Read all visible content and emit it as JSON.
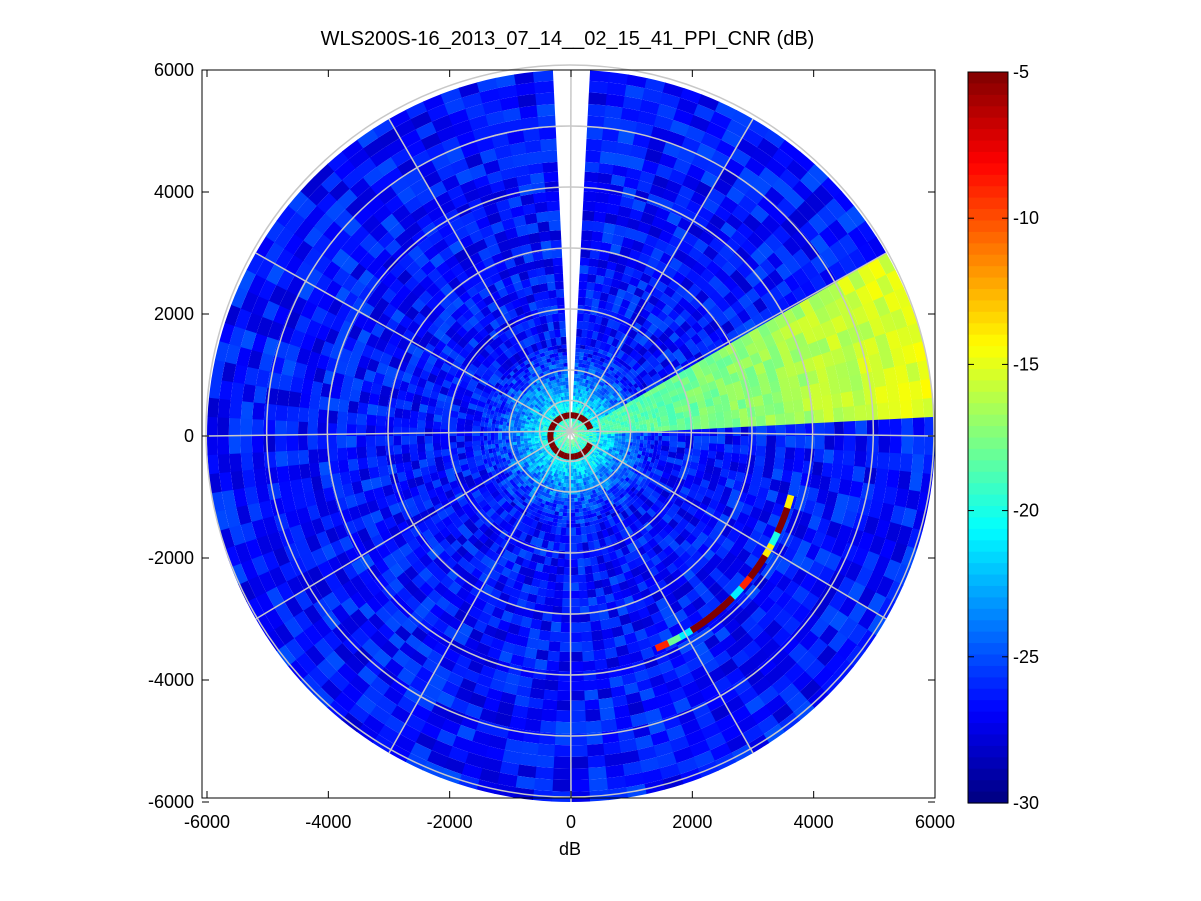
{
  "chart_data": {
    "type": "heatmap",
    "subtype": "polar-ppi",
    "title": "WLS200S-16_2013_07_14__02_15_41_PPI_CNR (dB)",
    "xlabel": "dB",
    "ylabel": "",
    "xlim": [
      -6000,
      6000
    ],
    "ylim": [
      -6000,
      6000
    ],
    "x_ticks": [
      -6000,
      -4000,
      -2000,
      0,
      2000,
      4000,
      6000
    ],
    "y_ticks": [
      -6000,
      -4000,
      -2000,
      0,
      2000,
      4000,
      6000
    ],
    "max_range": 6000,
    "range_rings": [
      500,
      1000,
      2000,
      3000,
      4000,
      5000,
      6000
    ],
    "spoke_angles_deg": [
      0,
      30,
      60,
      90,
      120,
      150,
      180,
      210,
      240,
      270,
      300,
      330
    ],
    "grid": true,
    "colormap": "jet",
    "colorbar": {
      "label": "",
      "range": [
        -30,
        -5
      ],
      "ticks": [
        -5,
        -10,
        -15,
        -20,
        -25,
        -30
      ]
    },
    "cnr_field": {
      "background_db": -26.5,
      "near_field": {
        "max_radius": 1500,
        "peak_db": -17.5
      },
      "close_ring": {
        "radius": 350,
        "db": -5
      },
      "blanked_sector": {
        "from_deg": -3,
        "to_deg": 3
      },
      "high_sector": {
        "from_deg": 61,
        "to_deg": 88,
        "db_range": [
          -19,
          -15
        ]
      },
      "hotspot_arc": {
        "radius": 3750,
        "from_deg": 105,
        "to_deg": 158,
        "segments_db": [
          -14,
          -5,
          -5,
          -20,
          -14,
          -5,
          -5,
          -9,
          -21,
          -5,
          -5,
          -5,
          -5,
          -21,
          -18,
          -9
        ]
      }
    }
  }
}
